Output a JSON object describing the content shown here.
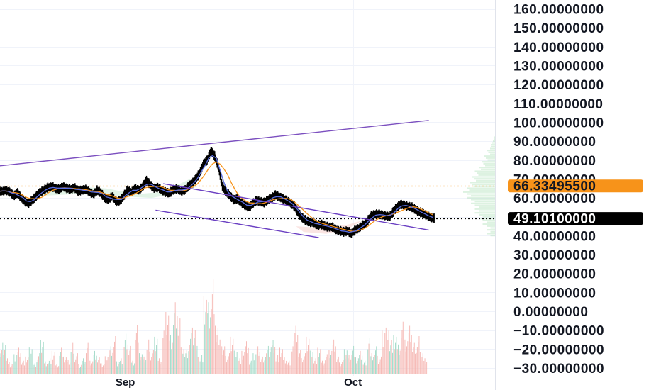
{
  "chart_data": {
    "type": "candlestick",
    "y_axis": {
      "ylim": [
        -32,
        166
      ],
      "ticks": [
        "160.00000000",
        "150.00000000",
        "140.00000000",
        "130.00000000",
        "120.00000000",
        "110.00000000",
        "100.00000000",
        "90.00000000",
        "80.00000000",
        "70.00000000",
        "60.00000000",
        "50.00000000",
        "40.00000000",
        "30.00000000",
        "20.00000000",
        "10.00000000",
        "0.00000000",
        "−10.00000000",
        "−20.00000000",
        "−30.00000000"
      ],
      "tick_values": [
        160,
        150,
        140,
        130,
        120,
        110,
        100,
        90,
        80,
        70,
        60,
        50,
        40,
        30,
        20,
        10,
        0,
        -10,
        -20,
        -30
      ]
    },
    "x_axis": {
      "labels": [
        "Sep",
        "Oct"
      ],
      "label_positions_index": [
        33,
        93
      ],
      "bar_count": 113
    },
    "price_tags": [
      {
        "value": 66.334955,
        "label": "66.33495500",
        "color": "#f7931a",
        "text_color": "#131722"
      },
      {
        "value": 49.101,
        "label": "49.10100000",
        "color": "#000000",
        "text_color": "#ffffff"
      }
    ],
    "reference_lines": [
      {
        "name": "dotted-orange",
        "value": 66.33,
        "color": "#f7931a"
      },
      {
        "name": "dotted-black",
        "value": 49.1,
        "color": "#000000"
      }
    ],
    "close_series": [
      63.5,
      64,
      63,
      61,
      62.5,
      60,
      58,
      57,
      59,
      61,
      63,
      64,
      65.5,
      66,
      65,
      64.5,
      66,
      65,
      64.5,
      65.5,
      63.5,
      64,
      64.5,
      63,
      62,
      64,
      62.5,
      60,
      59,
      61,
      58,
      58.5,
      61,
      64,
      63,
      65,
      64,
      66,
      69,
      67,
      65,
      65.5,
      64,
      63,
      62.5,
      64,
      65,
      63.5,
      64,
      66,
      67.5,
      70,
      73,
      78,
      80,
      85,
      82,
      76,
      66,
      63,
      61,
      59,
      59.5,
      57.5,
      56,
      55,
      57,
      58.5,
      58,
      57.5,
      59,
      60,
      61.5,
      60.5,
      59.5,
      58.5,
      57,
      55.5,
      52,
      49.5,
      48,
      47,
      47,
      45.5,
      46,
      45,
      44.5,
      44.5,
      43,
      42.5,
      42,
      42.5,
      41,
      43,
      44,
      45.5,
      47,
      50,
      51,
      51.5,
      51,
      50.5,
      50,
      52.5,
      55,
      56.5,
      56,
      55.5,
      55,
      53.5,
      52.5,
      51.5,
      50.5,
      49.5,
      49.1
    ],
    "series": [
      {
        "name": "",
        "color": "#f7931a"
      },
      {
        "name": "",
        "color": "#5b6ee1"
      }
    ],
    "trend_lines": [
      {
        "name": "upper-long",
        "from": [
          0,
          77
        ],
        "to": [
          113,
          101
        ],
        "color": "#7b4fbf"
      },
      {
        "name": "channel-top",
        "from": [
          43,
          67.5
        ],
        "to": [
          113,
          43
        ],
        "color": "#6a3fc2"
      },
      {
        "name": "channel-bottom",
        "from": [
          41,
          53.5
        ],
        "to": [
          84,
          39
        ],
        "color": "#6a3fc2"
      }
    ],
    "volume": {
      "bar_count": 113,
      "scale_max": 28,
      "values": [
        7,
        10,
        5,
        3,
        6,
        8,
        4,
        5,
        9,
        3,
        6,
        11,
        4,
        5,
        7,
        3,
        8,
        5,
        4,
        9,
        6,
        3,
        5,
        10,
        4,
        7,
        5,
        3,
        6,
        8,
        11,
        4,
        5,
        13,
        9,
        4,
        15,
        6,
        5,
        10,
        7,
        12,
        5,
        14,
        19,
        12,
        22,
        17,
        9,
        7,
        12,
        15,
        9,
        6,
        24,
        22,
        29,
        14,
        10,
        8,
        6,
        12,
        9,
        5,
        7,
        10,
        4,
        6,
        8,
        5,
        7,
        9,
        11,
        6,
        8,
        5,
        4,
        10,
        14,
        7,
        6,
        12,
        9,
        5,
        8,
        4,
        6,
        7,
        10,
        5,
        4,
        8,
        6,
        9,
        5,
        7,
        4,
        11,
        6,
        8,
        5,
        14,
        18,
        11,
        12,
        9,
        16,
        10,
        14,
        9,
        11,
        7,
        5
      ],
      "up_color": "#9fd9c6",
      "down_color": "#f5b5b0"
    },
    "volume_profile_color": "#9fd9a8",
    "grid": true
  }
}
